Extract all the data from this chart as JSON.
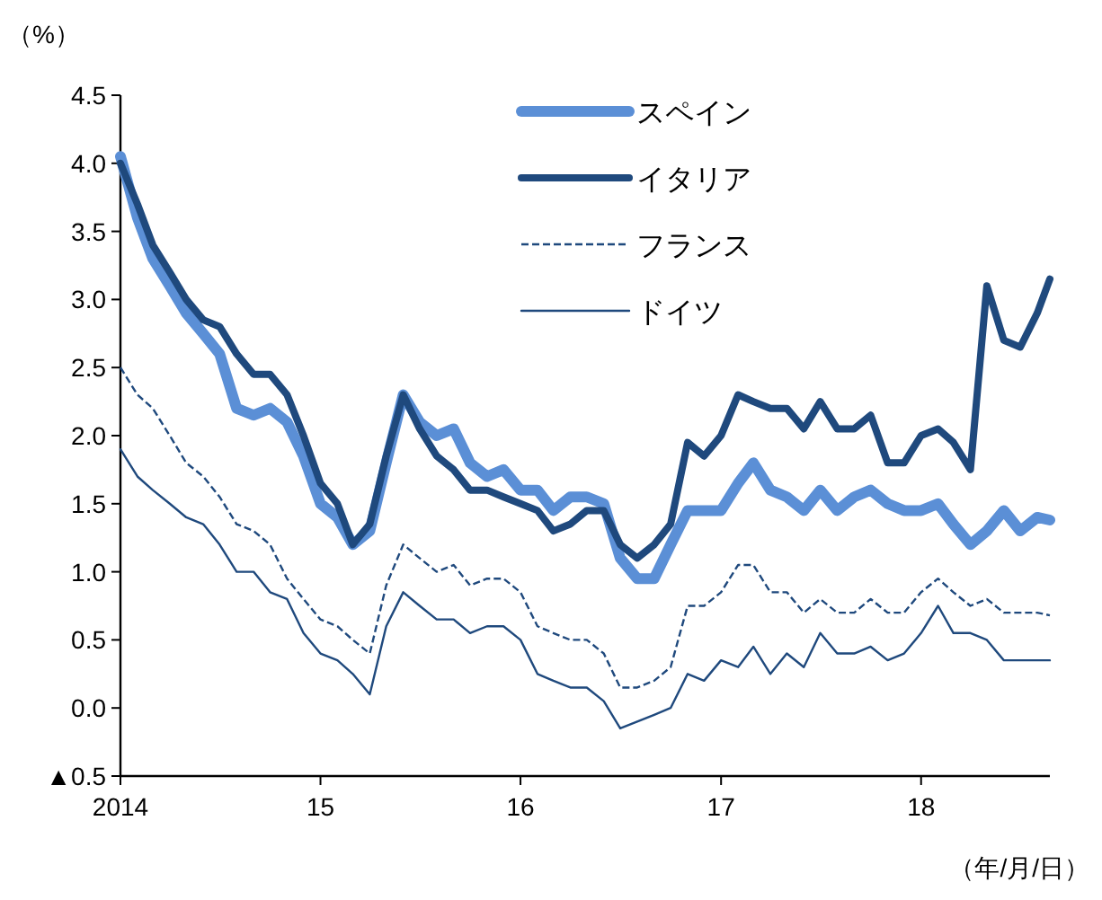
{
  "chart_data": {
    "type": "line",
    "ylabel": "（%）",
    "xlabel": "（年/月/日）",
    "x": [
      "2014-01-01",
      "2014-02-01",
      "2014-03-01",
      "2014-04-01",
      "2014-05-01",
      "2014-06-01",
      "2014-07-01",
      "2014-08-01",
      "2014-09-01",
      "2014-10-01",
      "2014-11-01",
      "2014-12-01",
      "2015-01-01",
      "2015-02-01",
      "2015-03-01",
      "2015-04-01",
      "2015-05-01",
      "2015-06-01",
      "2015-07-01",
      "2015-08-01",
      "2015-09-01",
      "2015-10-01",
      "2015-11-01",
      "2015-12-01",
      "2016-01-01",
      "2016-02-01",
      "2016-03-01",
      "2016-04-01",
      "2016-05-01",
      "2016-06-01",
      "2016-07-01",
      "2016-08-01",
      "2016-09-01",
      "2016-10-01",
      "2016-11-01",
      "2016-12-01",
      "2017-01-01",
      "2017-02-01",
      "2017-03-01",
      "2017-04-01",
      "2017-05-01",
      "2017-06-01",
      "2017-07-01",
      "2017-08-01",
      "2017-09-01",
      "2017-10-01",
      "2017-11-01",
      "2017-12-01",
      "2018-01-01",
      "2018-02-01",
      "2018-03-01",
      "2018-04-01",
      "2018-05-01",
      "2018-06-01",
      "2018-07-01",
      "2018-08-01",
      "2018-08-24"
    ],
    "series": [
      {
        "name": "スペイン",
        "color": "#5b8fd6",
        "line_style": "solid",
        "values": [
          4.05,
          3.6,
          3.3,
          3.1,
          2.9,
          2.75,
          2.6,
          2.2,
          2.15,
          2.2,
          2.1,
          1.85,
          1.5,
          1.4,
          1.2,
          1.3,
          1.8,
          2.3,
          2.1,
          2.0,
          2.05,
          1.8,
          1.7,
          1.75,
          1.6,
          1.6,
          1.45,
          1.55,
          1.55,
          1.5,
          1.1,
          0.95,
          0.95,
          1.2,
          1.45,
          1.45,
          1.45,
          1.65,
          1.8,
          1.6,
          1.55,
          1.45,
          1.6,
          1.45,
          1.55,
          1.6,
          1.5,
          1.45,
          1.45,
          1.5,
          1.35,
          1.2,
          1.3,
          1.45,
          1.3,
          1.4,
          1.38
        ]
      },
      {
        "name": "イタリア",
        "color": "#1f497d",
        "line_style": "solid",
        "values": [
          4.0,
          3.7,
          3.4,
          3.2,
          3.0,
          2.85,
          2.8,
          2.6,
          2.45,
          2.45,
          2.3,
          2.0,
          1.65,
          1.5,
          1.2,
          1.35,
          1.85,
          2.3,
          2.05,
          1.85,
          1.75,
          1.6,
          1.6,
          1.55,
          1.5,
          1.45,
          1.3,
          1.35,
          1.45,
          1.45,
          1.2,
          1.1,
          1.2,
          1.35,
          1.95,
          1.85,
          2.0,
          2.3,
          2.25,
          2.2,
          2.2,
          2.05,
          2.25,
          2.05,
          2.05,
          2.15,
          1.8,
          1.8,
          2.0,
          2.05,
          1.95,
          1.75,
          3.1,
          2.7,
          2.65,
          2.9,
          3.15
        ]
      },
      {
        "name": "フランス",
        "color": "#1f497d",
        "line_style": "dashed",
        "values": [
          2.5,
          2.3,
          2.2,
          2.0,
          1.8,
          1.7,
          1.55,
          1.35,
          1.3,
          1.2,
          0.95,
          0.8,
          0.65,
          0.6,
          0.5,
          0.4,
          0.9,
          1.2,
          1.1,
          1.0,
          1.05,
          0.9,
          0.95,
          0.95,
          0.85,
          0.6,
          0.55,
          0.5,
          0.5,
          0.4,
          0.15,
          0.15,
          0.2,
          0.3,
          0.75,
          0.75,
          0.85,
          1.05,
          1.05,
          0.85,
          0.85,
          0.7,
          0.8,
          0.7,
          0.7,
          0.8,
          0.7,
          0.7,
          0.85,
          0.95,
          0.85,
          0.75,
          0.8,
          0.7,
          0.7,
          0.7,
          0.68
        ]
      },
      {
        "name": "ドイツ",
        "color": "#1f497d",
        "line_style": "solid",
        "values": [
          1.9,
          1.7,
          1.6,
          1.5,
          1.4,
          1.35,
          1.2,
          1.0,
          1.0,
          0.85,
          0.8,
          0.55,
          0.4,
          0.35,
          0.25,
          0.1,
          0.6,
          0.85,
          0.75,
          0.65,
          0.65,
          0.55,
          0.6,
          0.6,
          0.5,
          0.25,
          0.2,
          0.15,
          0.15,
          0.05,
          -0.15,
          -0.1,
          -0.05,
          0.0,
          0.25,
          0.2,
          0.35,
          0.3,
          0.45,
          0.25,
          0.4,
          0.3,
          0.55,
          0.4,
          0.4,
          0.45,
          0.35,
          0.4,
          0.55,
          0.75,
          0.55,
          0.55,
          0.5,
          0.35,
          0.35,
          0.35,
          0.35
        ]
      }
    ],
    "xlim": [
      "2014-01-01",
      "2018-08-24"
    ],
    "xticks": [
      {
        "value": "2014-01-01",
        "label": "2014"
      },
      {
        "value": "2015-01-01",
        "label": "15"
      },
      {
        "value": "2016-01-01",
        "label": "16"
      },
      {
        "value": "2017-01-01",
        "label": "17"
      },
      {
        "value": "2018-01-01",
        "label": "18"
      }
    ],
    "ylim": [
      -0.5,
      4.5
    ],
    "yticks": [
      {
        "value": -0.5,
        "label": "▲0.5"
      },
      {
        "value": 0,
        "label": "0.0"
      },
      0.5,
      {
        "value": 1,
        "label": "1.0"
      },
      1.5,
      {
        "value": 2,
        "label": "2.0"
      },
      2.5,
      {
        "value": 3,
        "label": "3.0"
      },
      3.5,
      {
        "value": 4,
        "label": "4.0"
      },
      4.5
    ],
    "grid": false,
    "legend": "top right"
  }
}
